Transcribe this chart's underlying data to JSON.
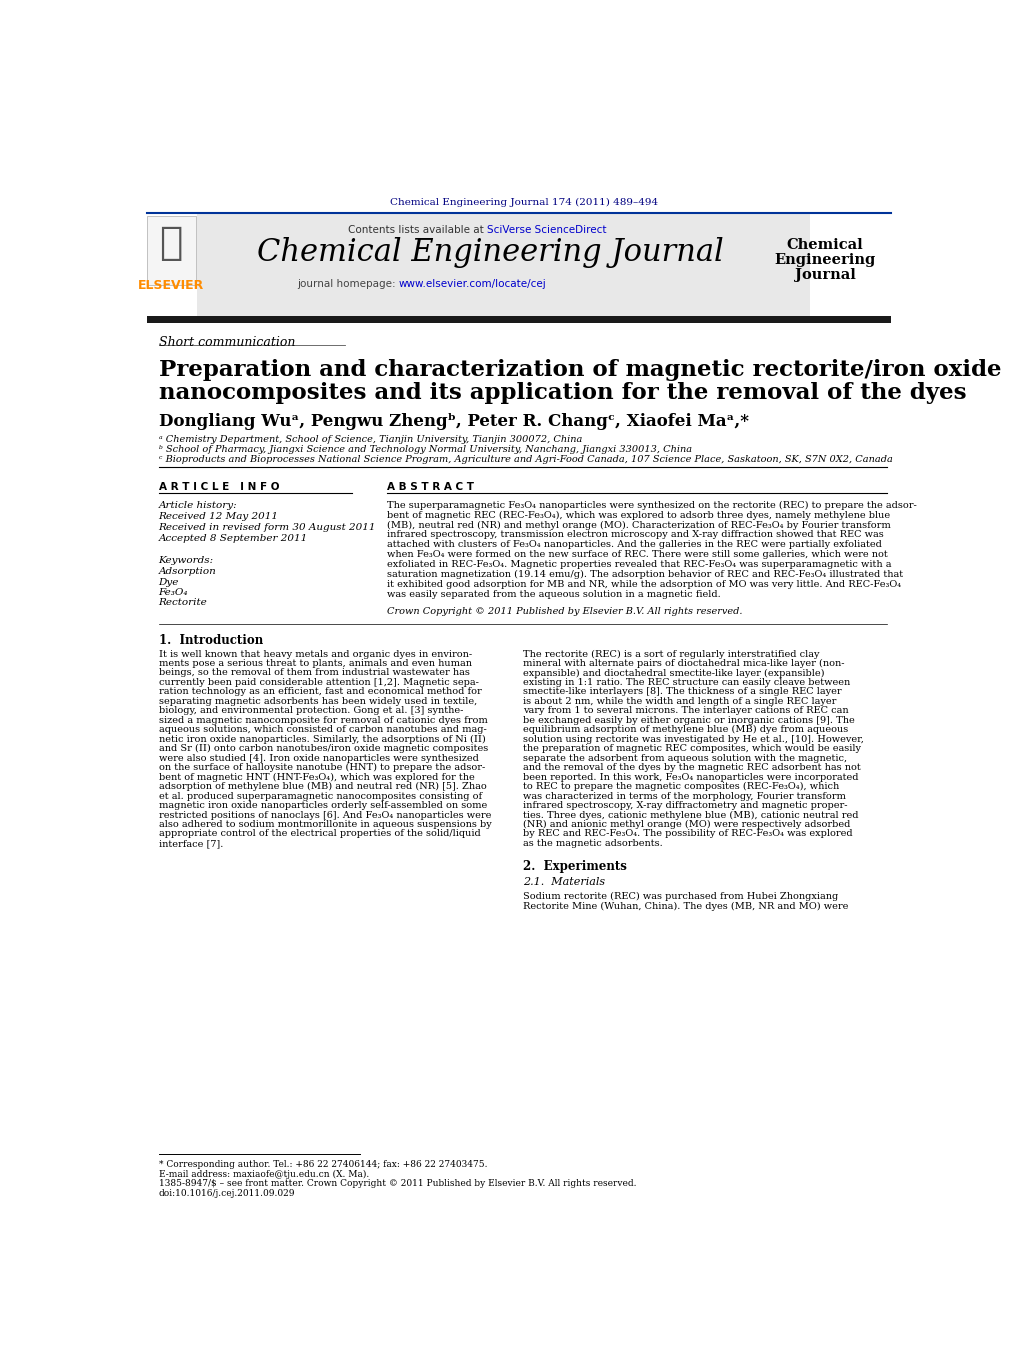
{
  "page_bg": "#ffffff",
  "top_journal_ref": "Chemical Engineering Journal 174 (2011) 489–494",
  "top_ref_color": "#000080",
  "header_bg": "#e8e8e8",
  "journal_title": "Chemical Engineering Journal",
  "journal_title_color": "#000000",
  "contents_text": "Contents lists available at ",
  "sciverse_text": "SciVerse ScienceDirect",
  "sciverse_color": "#0000cc",
  "homepage_text": "journal homepage: ",
  "homepage_url": "www.elsevier.com/locate/cej",
  "homepage_url_color": "#0000cc",
  "elsevier_color": "#FF8C00",
  "sidebar_title_line1": "Chemical",
  "sidebar_title_line2": "Engineering",
  "sidebar_title_line3": "Journal",
  "dark_bar_color": "#1a1a1a",
  "section_label": "Short communication",
  "paper_title_line1": "Preparation and characterization of magnetic rectorite/iron oxide",
  "paper_title_line2": "nanocomposites and its application for the removal of the dyes",
  "authors": "Dongliang Wuᵃ, Pengwu Zhengᵇ, Peter R. Changᶜ, Xiaofei Maᵃ,*",
  "affil1": "ᵃ Chemistry Department, School of Science, Tianjin University, Tianjin 300072, China",
  "affil2": "ᵇ School of Pharmacy, Jiangxi Science and Technology Normal University, Nanchang, Jiangxi 330013, China",
  "affil3": "ᶜ Bioproducts and Bioprocesses National Science Program, Agriculture and Agri-Food Canada, 107 Science Place, Saskatoon, SK, S7N 0X2, Canada",
  "article_info_header": "A R T I C L E   I N F O",
  "abstract_header": "A B S T R A C T",
  "article_history_label": "Article history:",
  "received_line1": "Received 12 May 2011",
  "received_line2": "Received in revised form 30 August 2011",
  "accepted_line": "Accepted 8 September 2011",
  "keywords_label": "Keywords:",
  "kw1": "Adsorption",
  "kw2": "Dye",
  "kw3": "Fe₃O₄",
  "kw4": "Rectorite",
  "abstract_text": "The superparamagnetic Fe₃O₄ nanoparticles were synthesized on the rectorite (REC) to prepare the adsor-\nbent of magnetic REC (REC-Fe₃O₄), which was explored to adsorb three dyes, namely methylene blue\n(MB), neutral red (NR) and methyl orange (MO). Characterization of REC-Fe₃O₄ by Fourier transform\ninfrared spectroscopy, transmission electron microscopy and X-ray diffraction showed that REC was\nattached with clusters of Fe₃O₄ nanoparticles. And the galleries in the REC were partially exfoliated\nwhen Fe₃O₄ were formed on the new surface of REC. There were still some galleries, which were not\nexfoliated in REC-Fe₃O₄. Magnetic properties revealed that REC-Fe₃O₄ was superparamagnetic with a\nsaturation magnetization (19.14 emu/g). The adsorption behavior of REC and REC-Fe₃O₄ illustrated that\nit exhibited good adsorption for MB and NR, while the adsorption of MO was very little. And REC-Fe₃O₄\nwas easily separated from the aqueous solution in a magnetic field.",
  "copyright_text": "Crown Copyright © 2011 Published by Elsevier B.V. All rights reserved.",
  "intro_header": "1.  Introduction",
  "intro_text_col1": "It is well known that heavy metals and organic dyes in environ-\nments pose a serious threat to plants, animals and even human\nbeings, so the removal of them from industrial wastewater has\ncurrently been paid considerable attention [1,2]. Magnetic sepa-\nration technology as an efficient, fast and economical method for\nseparating magnetic adsorbents has been widely used in textile,\nbiology, and environmental protection. Gong et al. [3] synthe-\nsized a magnetic nanocomposite for removal of cationic dyes from\naqueous solutions, which consisted of carbon nanotubes and mag-\nnetic iron oxide nanoparticles. Similarly, the adsorptions of Ni (II)\nand Sr (II) onto carbon nanotubes/iron oxide magnetic composites\nwere also studied [4]. Iron oxide nanoparticles were synthesized\non the surface of halloysite nanotube (HNT) to prepare the adsor-\nbent of magnetic HNT (HNT-Fe₃O₄), which was explored for the\nadsorption of methylene blue (MB) and neutral red (NR) [5]. Zhao\net al. produced superparamagnetic nanocomposites consisting of\nmagnetic iron oxide nanoparticles orderly self-assembled on some\nrestricted positions of nanoclays [6]. And Fe₃O₄ nanoparticles were\nalso adhered to sodium montmorillonite in aqueous suspensions by\nappropriate control of the electrical properties of the solid/liquid\ninterface [7].",
  "intro_text_col2": "The rectorite (REC) is a sort of regularly interstratified clay\nmineral with alternate pairs of dioctahedral mica-like layer (non-\nexpansible) and dioctahedral smectite-like layer (expansible)\nexisting in 1:1 ratio. The REC structure can easily cleave between\nsmectite-like interlayers [8]. The thickness of a single REC layer\nis about 2 nm, while the width and length of a single REC layer\nvary from 1 to several microns. The interlayer cations of REC can\nbe exchanged easily by either organic or inorganic cations [9]. The\nequilibrium adsorption of methylene blue (MB) dye from aqueous\nsolution using rectorite was investigated by He et al., [10]. However,\nthe preparation of magnetic REC composites, which would be easily\nseparate the adsorbent from aqueous solution with the magnetic,\nand the removal of the dyes by the magnetic REC adsorbent has not\nbeen reported. In this work, Fe₃O₄ nanoparticles were incorporated\nto REC to prepare the magnetic composites (REC-Fe₃O₄), which\nwas characterized in terms of the morphology, Fourier transform\ninfrared spectroscopy, X-ray diffractometry and magnetic proper-\nties. Three dyes, cationic methylene blue (MB), cationic neutral red\n(NR) and anionic methyl orange (MO) were respectively adsorbed\nby REC and REC-Fe₃O₄. The possibility of REC-Fe₃O₄ was explored\nas the magnetic adsorbents.",
  "section2_header": "2.  Experiments",
  "section21_header": "2.1.  Materials",
  "section21_text": "Sodium rectorite (REC) was purchased from Hubei Zhongxiang\nRectorite Mine (Wuhan, China). The dyes (MB, NR and MO) were",
  "footnote_corr": "* Corresponding author. Tel.: +86 22 27406144; fax: +86 22 27403475.",
  "footnote_email": "E-mail address: maxiaofe@tju.edu.cn (X. Ma).",
  "footnote_issn": "1385-8947/$ – see front matter. Crown Copyright © 2011 Published by Elsevier B.V. All rights reserved.",
  "footnote_doi": "doi:10.1016/j.cej.2011.09.029"
}
